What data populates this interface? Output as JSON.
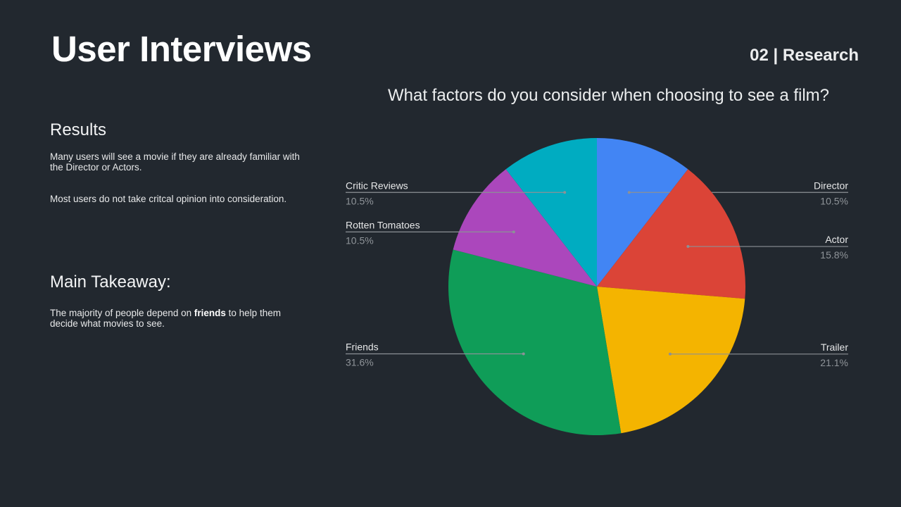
{
  "header": {
    "title": "User Interviews",
    "section": "02 | Research"
  },
  "results": {
    "heading": "Results",
    "p1": "Many users will see a movie if they are already familiar with the Director or Actors.",
    "p2": "Most users do not take critcal opinion into consideration."
  },
  "takeaway": {
    "heading": "Main Takeaway:",
    "before": "The majority of people depend on ",
    "bold": "friends",
    "after": " to help them decide what movies to see."
  },
  "chart_data": {
    "type": "pie",
    "title": "What factors do you consider when choosing to see a film?",
    "slices": [
      {
        "label": "Director",
        "value": 10.5,
        "pct_label": "10.5%",
        "color": "#4285f4"
      },
      {
        "label": "Actor",
        "value": 15.8,
        "pct_label": "15.8%",
        "color": "#db4437"
      },
      {
        "label": "Trailer",
        "value": 21.1,
        "pct_label": "21.1%",
        "color": "#f4b400"
      },
      {
        "label": "Friends",
        "value": 31.6,
        "pct_label": "31.6%",
        "color": "#0f9d58"
      },
      {
        "label": "Rotten Tomatoes",
        "value": 10.5,
        "pct_label": "10.5%",
        "color": "#ab47bc"
      },
      {
        "label": "Critic Reviews",
        "value": 10.5,
        "pct_label": "10.5%",
        "color": "#00acc1"
      }
    ],
    "start_angle": "12 o'clock",
    "direction": "clockwise",
    "legend": "callout labels"
  }
}
